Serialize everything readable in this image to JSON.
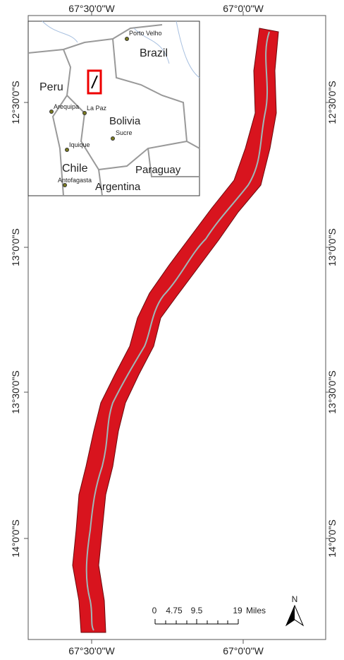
{
  "graticule": {
    "top": [
      "67°30'0\"W",
      "67°0'0\"W"
    ],
    "bottom": [
      "67°30'0\"W",
      "67°0'0\"W"
    ],
    "left": [
      "12°30'0\"S",
      "13°0'0\"S",
      "13°30'0\"S",
      "14°0'0\"S"
    ],
    "right": [
      "12°30'0\"S",
      "13°0'0\"S",
      "13°30'0\"S",
      "14°0'0\"S"
    ]
  },
  "inset": {
    "labels": [
      "Porto Velho",
      "Brazil",
      "Peru",
      "Arequipa",
      "La Paz",
      "Bolivia",
      "Sucre",
      "Iquique",
      "Chile",
      "Antofagasta",
      "Paraguay",
      "Argentina"
    ]
  },
  "scale_bar": {
    "ticks": [
      "0",
      "4.75",
      "9.5",
      "19"
    ],
    "unit": "Miles"
  },
  "north": "N"
}
